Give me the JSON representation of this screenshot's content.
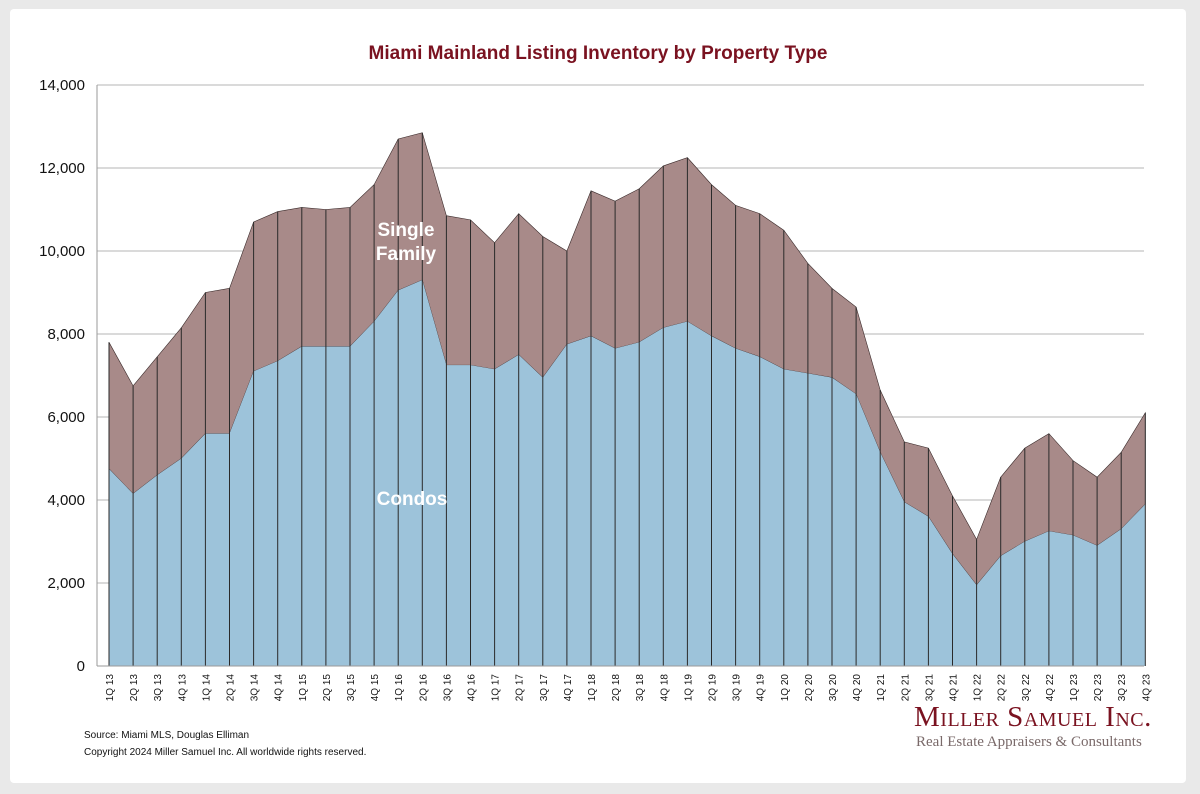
{
  "chart_data": {
    "type": "area",
    "title": "Miami Mainland Listing Inventory by Property Type",
    "xlabel": "",
    "ylabel": "",
    "ylim": [
      0,
      14000
    ],
    "yticks": [
      0,
      2000,
      4000,
      6000,
      8000,
      10000,
      12000,
      14000
    ],
    "ytick_labels": [
      "0",
      "2,000",
      "4,000",
      "6,000",
      "8,000",
      "10,000",
      "12,000",
      "14,000"
    ],
    "grid": true,
    "stacked": true,
    "categories": [
      "1Q 13",
      "2Q 13",
      "3Q 13",
      "4Q 13",
      "1Q 14",
      "2Q 14",
      "3Q 14",
      "4Q 14",
      "1Q 15",
      "2Q 15",
      "3Q 15",
      "4Q 15",
      "1Q 16",
      "2Q 16",
      "3Q 16",
      "4Q 16",
      "1Q 17",
      "2Q 17",
      "3Q 17",
      "4Q 17",
      "1Q 18",
      "2Q 18",
      "3Q 18",
      "4Q 18",
      "1Q 19",
      "2Q 19",
      "3Q 19",
      "4Q 19",
      "1Q 20",
      "2Q 20",
      "3Q 20",
      "4Q 20",
      "1Q 21",
      "2Q 21",
      "3Q 21",
      "4Q 21",
      "1Q 22",
      "2Q 22",
      "3Q 22",
      "4Q 22",
      "1Q 23",
      "2Q 23",
      "3Q 23",
      "4Q 23"
    ],
    "series": [
      {
        "name": "Condos",
        "label": "Condos",
        "color": "#9dc3da",
        "values": [
          4750,
          4150,
          4600,
          5000,
          5600,
          5600,
          7100,
          7350,
          7700,
          7700,
          7700,
          8300,
          9050,
          9300,
          7250,
          7250,
          7150,
          7500,
          6950,
          7750,
          7950,
          7650,
          7800,
          8150,
          8300,
          7950,
          7650,
          7450,
          7150,
          7050,
          6950,
          6550,
          5150,
          3950,
          3600,
          2700,
          1950,
          2650,
          3000,
          3250,
          3150,
          2900,
          3300,
          3900
        ]
      },
      {
        "name": "Single Family",
        "label": "Single\nFamily",
        "color": "#a88a89",
        "values": [
          3050,
          2600,
          2850,
          3150,
          3400,
          3500,
          3600,
          3600,
          3350,
          3300,
          3350,
          3300,
          3650,
          3550,
          3600,
          3500,
          3050,
          3400,
          3400,
          2250,
          3500,
          3550,
          3700,
          3900,
          3950,
          3650,
          3450,
          3450,
          3350,
          2650,
          2150,
          2100,
          1500,
          1450,
          1650,
          1400,
          1100,
          1900,
          2250,
          2350,
          1800,
          1650,
          1850,
          2200
        ]
      }
    ],
    "annotations": [
      {
        "text_line1": "Single",
        "text_line2": "Family"
      },
      {
        "text": "Condos"
      }
    ]
  },
  "footer": {
    "source": "Source: Miami MLS, Douglas Elliman",
    "copyright": "Copyright 2024 Miller Samuel Inc.  All worldwide rights reserved."
  },
  "logo": {
    "name": "Miller Samuel Inc.",
    "tagline": "Real Estate Appraisers & Consultants"
  },
  "colors": {
    "title": "#7a1220",
    "condos": "#9dc3da",
    "single_family": "#a88a89",
    "grid": "#b5b5b5"
  }
}
